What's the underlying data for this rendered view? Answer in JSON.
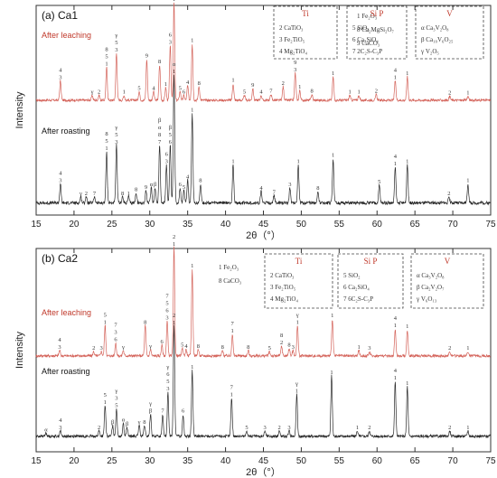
{
  "chart_data": [
    {
      "panel_label": "(a) Ca1",
      "type": "line",
      "xlabel": "2θ（°）",
      "ylabel": "Intensity",
      "xlim": [
        15,
        75
      ],
      "x_ticks": [
        15,
        20,
        25,
        30,
        35,
        40,
        45,
        50,
        55,
        60,
        65,
        70,
        75
      ],
      "legend": {
        "plain": [
          "1  Fe₂O₃",
          "8  Ca₂MgSi₂O₇",
          "9  CaCO₃"
        ],
        "groups": [
          {
            "title": "Ti",
            "items": [
              "2  CaTiO₃",
              "3  Fe₂TiO₅",
              "4  Mg₂TiO₄"
            ]
          },
          {
            "title": "Si     P",
            "items": [
              "5  SiO₂",
              "6  Ca₂SiO₄",
              "7  2C₂S-C₃P"
            ]
          },
          {
            "title": "V",
            "items": [
              "α  Ca₃V₂O₈",
              "β  Ca₁₀V₆O₂₅",
              "γ  V₂O₅"
            ]
          }
        ]
      },
      "series": [
        {
          "name": "After leaching",
          "color": "#d4635a",
          "peaks": [
            {
              "x": 18.2,
              "h": 0.2,
              "label": "4\n3"
            },
            {
              "x": 22.4,
              "h": 0.05,
              "label": "γ"
            },
            {
              "x": 23.3,
              "h": 0.05,
              "label": "2"
            },
            {
              "x": 24.3,
              "h": 0.34,
              "label": "8\n5\n1"
            },
            {
              "x": 25.6,
              "h": 0.48,
              "label": "γ\n5\n3"
            },
            {
              "x": 26.6,
              "h": 0.05,
              "label": "1"
            },
            {
              "x": 28.6,
              "h": 0.09,
              "label": "5"
            },
            {
              "x": 29.6,
              "h": 0.42,
              "label": "9"
            },
            {
              "x": 30.5,
              "h": 0.09,
              "label": "4"
            },
            {
              "x": 31.3,
              "h": 0.36,
              "label": "8"
            },
            {
              "x": 32.1,
              "h": 0.13,
              "label": "1"
            },
            {
              "x": 32.7,
              "h": 0.56,
              "label": "6\n3"
            },
            {
              "x": 33.2,
              "h": 1.0,
              "label": "7\n2\n1"
            },
            {
              "x": 34.0,
              "h": 0.09,
              "label": "5"
            },
            {
              "x": 34.5,
              "h": 0.05,
              "label": "6"
            },
            {
              "x": 35.0,
              "h": 0.15,
              "label": "4"
            },
            {
              "x": 35.6,
              "h": 0.58,
              "label": "1"
            },
            {
              "x": 36.5,
              "h": 0.14,
              "label": "8"
            },
            {
              "x": 41.0,
              "h": 0.17,
              "label": "1"
            },
            {
              "x": 42.5,
              "h": 0.05,
              "label": "5"
            },
            {
              "x": 43.6,
              "h": 0.12,
              "label": "9"
            },
            {
              "x": 44.7,
              "h": 0.05,
              "label": "4"
            },
            {
              "x": 46.0,
              "h": 0.06,
              "label": "7"
            },
            {
              "x": 47.6,
              "h": 0.14,
              "label": "2"
            },
            {
              "x": 49.2,
              "h": 0.28,
              "label": "9\n3"
            },
            {
              "x": 49.8,
              "h": 0.1,
              "label": "1"
            },
            {
              "x": 51.4,
              "h": 0.06,
              "label": "8"
            },
            {
              "x": 54.2,
              "h": 0.24,
              "label": "1"
            },
            {
              "x": 56.4,
              "h": 0.05,
              "label": "1"
            },
            {
              "x": 57.6,
              "h": 0.05,
              "label": "1"
            },
            {
              "x": 59.9,
              "h": 0.06,
              "label": "2"
            },
            {
              "x": 62.4,
              "h": 0.2,
              "label": "4\n1"
            },
            {
              "x": 64.0,
              "h": 0.24,
              "label": "1"
            },
            {
              "x": 69.6,
              "h": 0.04,
              "label": "2"
            },
            {
              "x": 72.0,
              "h": 0.04,
              "label": "1"
            }
          ]
        },
        {
          "name": "After roasting",
          "color": "#2a2a2a",
          "peaks": [
            {
              "x": 18.2,
              "h": 0.15,
              "label": "4\n3"
            },
            {
              "x": 20.9,
              "h": 0.05,
              "label": "γ"
            },
            {
              "x": 21.6,
              "h": 0.05,
              "label": "2"
            },
            {
              "x": 22.7,
              "h": 0.05,
              "label": "7"
            },
            {
              "x": 24.3,
              "h": 0.4,
              "label": "8\n5\n1"
            },
            {
              "x": 25.6,
              "h": 0.45,
              "label": "γ\n5\n3"
            },
            {
              "x": 26.4,
              "h": 0.05,
              "label": "8"
            },
            {
              "x": 27.2,
              "h": 0.05,
              "label": "1"
            },
            {
              "x": 28.2,
              "h": 0.08,
              "label": "8"
            },
            {
              "x": 29.5,
              "h": 0.1,
              "label": "9"
            },
            {
              "x": 30.2,
              "h": 0.12,
              "label": "α"
            },
            {
              "x": 30.7,
              "h": 0.12,
              "label": "β"
            },
            {
              "x": 31.3,
              "h": 0.45,
              "label": "β\nα\n8\n7"
            },
            {
              "x": 32.2,
              "h": 0.3,
              "label": "6\n3"
            },
            {
              "x": 32.7,
              "h": 0.45,
              "label": "β\n5\n6"
            },
            {
              "x": 33.2,
              "h": 1.0,
              "label": "α\n1"
            },
            {
              "x": 34.0,
              "h": 0.12,
              "label": "6"
            },
            {
              "x": 34.5,
              "h": 0.1,
              "label": "5"
            },
            {
              "x": 35.0,
              "h": 0.18,
              "label": "4"
            },
            {
              "x": 35.6,
              "h": 0.7,
              "label": "1"
            },
            {
              "x": 36.7,
              "h": 0.15,
              "label": "8"
            },
            {
              "x": 41.0,
              "h": 0.3,
              "label": "1"
            },
            {
              "x": 44.7,
              "h": 0.09,
              "label": "4"
            },
            {
              "x": 46.4,
              "h": 0.06,
              "label": "7"
            },
            {
              "x": 48.5,
              "h": 0.12,
              "label": "3"
            },
            {
              "x": 49.6,
              "h": 0.3,
              "label": "1"
            },
            {
              "x": 52.2,
              "h": 0.09,
              "label": "8"
            },
            {
              "x": 54.2,
              "h": 0.35,
              "label": "1"
            },
            {
              "x": 60.3,
              "h": 0.14,
              "label": "5"
            },
            {
              "x": 62.4,
              "h": 0.28,
              "label": "4\n1"
            },
            {
              "x": 64.0,
              "h": 0.3,
              "label": "1"
            },
            {
              "x": 69.5,
              "h": 0.05,
              "label": "2"
            },
            {
              "x": 72.0,
              "h": 0.15,
              "label": "1"
            }
          ]
        }
      ]
    },
    {
      "panel_label": "(b) Ca2",
      "type": "line",
      "xlabel": "2θ（°）",
      "ylabel": "Intensity",
      "xlim": [
        15,
        75
      ],
      "x_ticks": [
        15,
        20,
        25,
        30,
        35,
        40,
        45,
        50,
        55,
        60,
        65,
        70,
        75
      ],
      "legend": {
        "plain": [
          "1  Fe₂O₃",
          "8  CaCO₃"
        ],
        "groups": [
          {
            "title": "Ti",
            "items": [
              "2  CaTiO₃",
              "3  Fe₂TiO₅",
              "4  Mg₂TiO₄"
            ]
          },
          {
            "title": "Si     P",
            "items": [
              "5  SiO₂",
              "6  Ca₂SiO₄",
              "7  6C₂S-C₃P"
            ]
          },
          {
            "title": "V",
            "items": [
              "α  Ca₃V₂O₈",
              "β  Ca₂V₂O₇",
              "γ  V₆O₁₃"
            ]
          }
        ]
      },
      "series": [
        {
          "name": "After leaching",
          "color": "#d4635a",
          "peaks": [
            {
              "x": 18.1,
              "h": 0.05,
              "label": "4\n3"
            },
            {
              "x": 22.6,
              "h": 0.04,
              "label": "2"
            },
            {
              "x": 23.6,
              "h": 0.04,
              "label": "3"
            },
            {
              "x": 24.1,
              "h": 0.28,
              "label": "5\n1"
            },
            {
              "x": 25.5,
              "h": 0.12,
              "label": "7\n3\n6"
            },
            {
              "x": 26.5,
              "h": 0.05,
              "label": "γ"
            },
            {
              "x": 29.4,
              "h": 0.28,
              "label": "8"
            },
            {
              "x": 30.1,
              "h": 0.06,
              "label": "γ"
            },
            {
              "x": 31.6,
              "h": 0.1,
              "label": "6"
            },
            {
              "x": 32.3,
              "h": 0.32,
              "label": "7\n5\n6\n3"
            },
            {
              "x": 33.2,
              "h": 1.0,
              "label": "2\n1"
            },
            {
              "x": 34.3,
              "h": 0.07,
              "label": "5"
            },
            {
              "x": 34.8,
              "h": 0.06,
              "label": "4"
            },
            {
              "x": 35.6,
              "h": 0.8,
              "label": "1"
            },
            {
              "x": 36.4,
              "h": 0.06,
              "label": "8"
            },
            {
              "x": 39.6,
              "h": 0.05,
              "label": "8"
            },
            {
              "x": 40.9,
              "h": 0.2,
              "label": "7\n1"
            },
            {
              "x": 43.0,
              "h": 0.05,
              "label": "8"
            },
            {
              "x": 45.8,
              "h": 0.04,
              "label": "5"
            },
            {
              "x": 47.4,
              "h": 0.09,
              "label": "8\n2"
            },
            {
              "x": 48.4,
              "h": 0.07,
              "label": "8"
            },
            {
              "x": 48.9,
              "h": 0.05,
              "label": "3"
            },
            {
              "x": 49.5,
              "h": 0.28,
              "label": "γ\n1"
            },
            {
              "x": 54.1,
              "h": 0.34,
              "label": "1"
            },
            {
              "x": 57.6,
              "h": 0.05,
              "label": "1"
            },
            {
              "x": 59.0,
              "h": 0.04,
              "label": "3"
            },
            {
              "x": 62.4,
              "h": 0.25,
              "label": "4\n1"
            },
            {
              "x": 64.0,
              "h": 0.24,
              "label": "1"
            },
            {
              "x": 69.6,
              "h": 0.04,
              "label": "2"
            },
            {
              "x": 72.0,
              "h": 0.04,
              "label": "1"
            }
          ]
        },
        {
          "name": "After roasting",
          "color": "#2a2a2a",
          "peaks": [
            {
              "x": 16.3,
              "h": 0.03,
              "label": "α"
            },
            {
              "x": 18.2,
              "h": 0.05,
              "label": "4\n3"
            },
            {
              "x": 23.3,
              "h": 0.05,
              "label": "2"
            },
            {
              "x": 24.1,
              "h": 0.28,
              "label": "5\n1"
            },
            {
              "x": 25.1,
              "h": 0.1,
              "label": "β"
            },
            {
              "x": 25.6,
              "h": 0.25,
              "label": "γ\n3\n5"
            },
            {
              "x": 26.5,
              "h": 0.12,
              "label": "α"
            },
            {
              "x": 27.0,
              "h": 0.08,
              "label": "β"
            },
            {
              "x": 28.6,
              "h": 0.1,
              "label": "γ"
            },
            {
              "x": 29.3,
              "h": 0.1,
              "label": "8"
            },
            {
              "x": 30.1,
              "h": 0.2,
              "label": "γ\nβ"
            },
            {
              "x": 31.7,
              "h": 0.2,
              "label": "7"
            },
            {
              "x": 32.4,
              "h": 0.4,
              "label": "γ\n6\n5\n3"
            },
            {
              "x": 33.2,
              "h": 1.0,
              "label": "2\n1"
            },
            {
              "x": 34.4,
              "h": 0.2,
              "label": "6"
            },
            {
              "x": 35.6,
              "h": 0.6,
              "label": "1"
            },
            {
              "x": 40.8,
              "h": 0.35,
              "label": "7\n1"
            },
            {
              "x": 42.8,
              "h": 0.05,
              "label": "5"
            },
            {
              "x": 45.2,
              "h": 0.05,
              "label": "3"
            },
            {
              "x": 47.1,
              "h": 0.05,
              "label": "2"
            },
            {
              "x": 48.4,
              "h": 0.05,
              "label": "3"
            },
            {
              "x": 49.4,
              "h": 0.38,
              "label": "γ\n1"
            },
            {
              "x": 54.0,
              "h": 0.55,
              "label": "1"
            },
            {
              "x": 57.4,
              "h": 0.05,
              "label": "1"
            },
            {
              "x": 59.0,
              "h": 0.05,
              "label": "2"
            },
            {
              "x": 62.4,
              "h": 0.5,
              "label": "4\n1"
            },
            {
              "x": 64.0,
              "h": 0.45,
              "label": "1"
            },
            {
              "x": 69.6,
              "h": 0.05,
              "label": "2"
            },
            {
              "x": 72.0,
              "h": 0.05,
              "label": "1"
            }
          ]
        }
      ]
    }
  ]
}
